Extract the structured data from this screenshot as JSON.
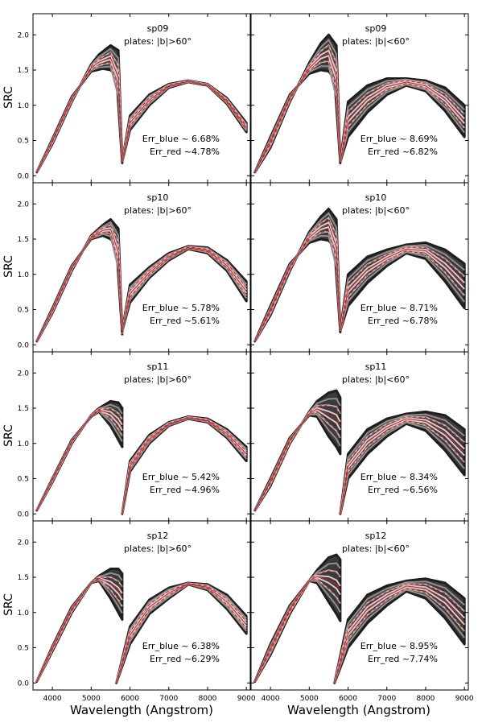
{
  "figure": {
    "xlabel": "Wavelength (Angstrom)",
    "ylabel": "SRC"
  },
  "chart_data": [
    {
      "type": "line",
      "title": "sp09",
      "subtitle": "plates: |b|>60°",
      "err_blue": "Err_blue ~ 6.68%",
      "err_red": "Err_red ~4.78%",
      "xlim": [
        3500,
        9100
      ],
      "ylim": [
        -0.1,
        2.3
      ],
      "xticks": [
        4000,
        5000,
        6000,
        7000,
        8000,
        9000
      ],
      "yticks": [
        0.0,
        0.5,
        1.0,
        1.5,
        2.0
      ],
      "series": [
        {
          "x": [
            3600,
            4000,
            4500,
            5000,
            5200,
            5500,
            5700,
            5800
          ],
          "y": [
            0.05,
            0.45,
            1.05,
            1.58,
            1.72,
            1.85,
            1.78,
            0.18
          ]
        },
        {
          "x": [
            3600,
            4000,
            4500,
            5000,
            5300,
            5500,
            5650,
            5800
          ],
          "y": [
            0.05,
            0.52,
            1.12,
            1.48,
            1.52,
            1.5,
            1.42,
            0.18
          ]
        },
        {
          "x": [
            5800,
            6000,
            6500,
            7000,
            7500,
            8000,
            8500,
            9000
          ],
          "y": [
            0.2,
            0.85,
            1.15,
            1.3,
            1.35,
            1.3,
            1.1,
            0.75
          ]
        },
        {
          "x": [
            5800,
            6000,
            6500,
            7000,
            7500,
            8000,
            8500,
            9000
          ],
          "y": [
            0.2,
            0.65,
            1.0,
            1.25,
            1.33,
            1.28,
            1.02,
            0.62
          ]
        }
      ]
    },
    {
      "type": "line",
      "title": "sp09",
      "subtitle": "plates: |b|<60°",
      "err_blue": "Err_blue ~ 8.69%",
      "err_red": "Err_red ~6.82%",
      "xlim": [
        3500,
        9100
      ],
      "ylim": [
        -0.1,
        2.3
      ],
      "xticks": [
        4000,
        5000,
        6000,
        7000,
        8000,
        9000
      ],
      "yticks": [
        0.0,
        0.5,
        1.0,
        1.5,
        2.0
      ],
      "series": [
        {
          "x": [
            3600,
            4000,
            4500,
            5000,
            5300,
            5500,
            5700,
            5800
          ],
          "y": [
            0.05,
            0.4,
            1.05,
            1.6,
            1.88,
            2.0,
            1.85,
            0.18
          ]
        },
        {
          "x": [
            3600,
            4000,
            4500,
            5000,
            5300,
            5500,
            5650,
            5800
          ],
          "y": [
            0.05,
            0.55,
            1.15,
            1.45,
            1.5,
            1.48,
            1.38,
            0.18
          ]
        },
        {
          "x": [
            5800,
            6000,
            6500,
            7000,
            7500,
            8000,
            8500,
            9000
          ],
          "y": [
            0.2,
            1.05,
            1.28,
            1.38,
            1.38,
            1.35,
            1.25,
            1.0
          ]
        },
        {
          "x": [
            5800,
            6000,
            6500,
            7000,
            7500,
            8000,
            8500,
            9000
          ],
          "y": [
            0.2,
            0.55,
            0.9,
            1.15,
            1.28,
            1.2,
            0.92,
            0.55
          ]
        }
      ]
    },
    {
      "type": "line",
      "title": "sp10",
      "subtitle": "plates: |b|>60°",
      "err_blue": "Err_blue ~ 5.78%",
      "err_red": "Err_red ~5.61%",
      "xlim": [
        3500,
        9100
      ],
      "ylim": [
        -0.1,
        2.3
      ],
      "xticks": [
        4000,
        5000,
        6000,
        7000,
        8000,
        9000
      ],
      "yticks": [
        0.0,
        0.5,
        1.0,
        1.5,
        2.0
      ],
      "series": [
        {
          "x": [
            3600,
            4000,
            4500,
            5000,
            5300,
            5500,
            5700,
            5800
          ],
          "y": [
            0.05,
            0.45,
            1.05,
            1.55,
            1.7,
            1.78,
            1.65,
            0.15
          ]
        },
        {
          "x": [
            3600,
            4000,
            4500,
            5000,
            5300,
            5500,
            5650,
            5800
          ],
          "y": [
            0.05,
            0.52,
            1.12,
            1.5,
            1.55,
            1.5,
            1.4,
            0.15
          ]
        },
        {
          "x": [
            5800,
            6000,
            6500,
            7000,
            7500,
            8000,
            8500,
            9000
          ],
          "y": [
            0.2,
            0.85,
            1.1,
            1.3,
            1.4,
            1.38,
            1.2,
            0.9
          ]
        },
        {
          "x": [
            5800,
            6000,
            6500,
            7000,
            7500,
            8000,
            8500,
            9000
          ],
          "y": [
            0.2,
            0.6,
            0.95,
            1.2,
            1.36,
            1.3,
            1.05,
            0.62
          ]
        }
      ]
    },
    {
      "type": "line",
      "title": "sp10",
      "subtitle": "plates: |b|<60°",
      "err_blue": "Err_blue ~ 8.71%",
      "err_red": "Err_red ~6.78%",
      "xlim": [
        3500,
        9100
      ],
      "ylim": [
        -0.1,
        2.3
      ],
      "xticks": [
        4000,
        5000,
        6000,
        7000,
        8000,
        9000
      ],
      "yticks": [
        0.0,
        0.5,
        1.0,
        1.5,
        2.0
      ],
      "series": [
        {
          "x": [
            3600,
            4000,
            4500,
            5000,
            5300,
            5500,
            5700,
            5800
          ],
          "y": [
            0.05,
            0.42,
            1.05,
            1.6,
            1.82,
            1.93,
            1.78,
            0.18
          ]
        },
        {
          "x": [
            3600,
            4000,
            4500,
            5000,
            5300,
            5500,
            5650,
            5800
          ],
          "y": [
            0.05,
            0.55,
            1.15,
            1.45,
            1.5,
            1.48,
            1.38,
            0.18
          ]
        },
        {
          "x": [
            5800,
            6000,
            6500,
            7000,
            7500,
            8000,
            8500,
            9000
          ],
          "y": [
            0.2,
            1.0,
            1.25,
            1.35,
            1.42,
            1.45,
            1.35,
            1.15
          ]
        },
        {
          "x": [
            5800,
            6000,
            6500,
            7000,
            7500,
            8000,
            8500,
            9000
          ],
          "y": [
            0.2,
            0.55,
            0.88,
            1.12,
            1.3,
            1.22,
            0.9,
            0.52
          ]
        }
      ]
    },
    {
      "type": "line",
      "title": "sp11",
      "subtitle": "plates: |b|>60°",
      "err_blue": "Err_blue ~ 5.42%",
      "err_red": "Err_red ~4.96%",
      "xlim": [
        3500,
        9100
      ],
      "ylim": [
        -0.1,
        2.3
      ],
      "xticks": [
        4000,
        5000,
        6000,
        7000,
        8000,
        9000
      ],
      "yticks": [
        0.0,
        0.5,
        1.0,
        1.5,
        2.0
      ],
      "series": [
        {
          "x": [
            3600,
            4000,
            4500,
            5000,
            5200,
            5500,
            5700,
            5800
          ],
          "y": [
            0.05,
            0.45,
            1.0,
            1.4,
            1.5,
            1.6,
            1.58,
            1.5
          ]
        },
        {
          "x": [
            3600,
            4000,
            4500,
            5000,
            5200,
            5500,
            5700,
            5800
          ],
          "y": [
            0.05,
            0.5,
            1.05,
            1.38,
            1.45,
            1.25,
            1.05,
            0.95
          ]
        },
        {
          "x": [
            5800,
            6000,
            6500,
            7000,
            7500,
            8000,
            8500,
            9000
          ],
          "y": [
            0.0,
            0.75,
            1.12,
            1.3,
            1.38,
            1.35,
            1.2,
            0.95
          ]
        },
        {
          "x": [
            5800,
            6000,
            6500,
            7000,
            7500,
            8000,
            8500,
            9000
          ],
          "y": [
            0.0,
            0.6,
            1.0,
            1.25,
            1.35,
            1.3,
            1.08,
            0.75
          ]
        }
      ]
    },
    {
      "type": "line",
      "title": "sp11",
      "subtitle": "plates: |b|<60°",
      "err_blue": "Err_blue ~ 8.34%",
      "err_red": "Err_red ~6.56%",
      "xlim": [
        3500,
        9100
      ],
      "ylim": [
        -0.1,
        2.3
      ],
      "xticks": [
        4000,
        5000,
        6000,
        7000,
        8000,
        9000
      ],
      "yticks": [
        0.0,
        0.5,
        1.0,
        1.5,
        2.0
      ],
      "series": [
        {
          "x": [
            3600,
            4000,
            4500,
            5000,
            5200,
            5500,
            5700,
            5800
          ],
          "y": [
            0.05,
            0.4,
            1.0,
            1.45,
            1.6,
            1.72,
            1.75,
            1.65
          ]
        },
        {
          "x": [
            3600,
            4000,
            4500,
            5000,
            5200,
            5500,
            5700,
            5800
          ],
          "y": [
            0.05,
            0.5,
            1.08,
            1.4,
            1.38,
            1.1,
            0.95,
            0.85
          ]
        },
        {
          "x": [
            5800,
            6000,
            6500,
            7000,
            7500,
            8000,
            8500,
            9000
          ],
          "y": [
            0.0,
            0.85,
            1.2,
            1.35,
            1.42,
            1.45,
            1.4,
            1.2
          ]
        },
        {
          "x": [
            5800,
            6000,
            6500,
            7000,
            7500,
            8000,
            8500,
            9000
          ],
          "y": [
            0.0,
            0.5,
            0.85,
            1.1,
            1.28,
            1.18,
            0.9,
            0.55
          ]
        }
      ]
    },
    {
      "type": "line",
      "title": "sp12",
      "subtitle": "plates: |b|>60°",
      "err_blue": "Err_blue ~ 6.38%",
      "err_red": "Err_red ~6.29%",
      "xlim": [
        3500,
        9100
      ],
      "ylim": [
        -0.1,
        2.3
      ],
      "xticks": [
        4000,
        5000,
        6000,
        7000,
        8000,
        9000
      ],
      "yticks": [
        0.0,
        0.5,
        1.0,
        1.5,
        2.0
      ],
      "series": [
        {
          "x": [
            3600,
            4000,
            4500,
            5000,
            5200,
            5500,
            5700,
            5800
          ],
          "y": [
            0.02,
            0.45,
            1.0,
            1.42,
            1.52,
            1.62,
            1.62,
            1.55
          ]
        },
        {
          "x": [
            3600,
            4000,
            4500,
            5000,
            5200,
            5500,
            5700,
            5800
          ],
          "y": [
            0.02,
            0.52,
            1.08,
            1.42,
            1.45,
            1.2,
            1.0,
            0.9
          ]
        },
        {
          "x": [
            5650,
            6000,
            6500,
            7000,
            7500,
            8000,
            8500,
            9000
          ],
          "y": [
            0.0,
            0.8,
            1.18,
            1.35,
            1.42,
            1.4,
            1.25,
            0.95
          ]
        },
        {
          "x": [
            5650,
            6000,
            6500,
            7000,
            7500,
            8000,
            8500,
            9000
          ],
          "y": [
            0.0,
            0.55,
            0.98,
            1.2,
            1.4,
            1.32,
            1.05,
            0.7
          ]
        }
      ]
    },
    {
      "type": "line",
      "title": "sp12",
      "subtitle": "plates: |b|<60°",
      "err_blue": "Err_blue ~ 8.95%",
      "err_red": "Err_red ~7.74%",
      "xlim": [
        3500,
        9100
      ],
      "ylim": [
        -0.1,
        2.3
      ],
      "xticks": [
        4000,
        5000,
        6000,
        7000,
        8000,
        9000
      ],
      "yticks": [
        0.0,
        0.5,
        1.0,
        1.5,
        2.0
      ],
      "series": [
        {
          "x": [
            3600,
            4000,
            4500,
            5000,
            5200,
            5500,
            5700,
            5800
          ],
          "y": [
            0.02,
            0.4,
            0.98,
            1.45,
            1.6,
            1.78,
            1.82,
            1.75
          ]
        },
        {
          "x": [
            3600,
            4000,
            4500,
            5000,
            5200,
            5500,
            5700,
            5800
          ],
          "y": [
            0.02,
            0.55,
            1.1,
            1.45,
            1.42,
            1.15,
            0.98,
            0.88
          ]
        },
        {
          "x": [
            5650,
            6000,
            6500,
            7000,
            7500,
            8000,
            8500,
            9000
          ],
          "y": [
            0.0,
            0.9,
            1.25,
            1.38,
            1.45,
            1.48,
            1.42,
            1.2
          ]
        },
        {
          "x": [
            5650,
            6000,
            6500,
            7000,
            7500,
            8000,
            8500,
            9000
          ],
          "y": [
            0.0,
            0.5,
            0.85,
            1.1,
            1.3,
            1.2,
            0.92,
            0.55
          ]
        }
      ]
    }
  ]
}
